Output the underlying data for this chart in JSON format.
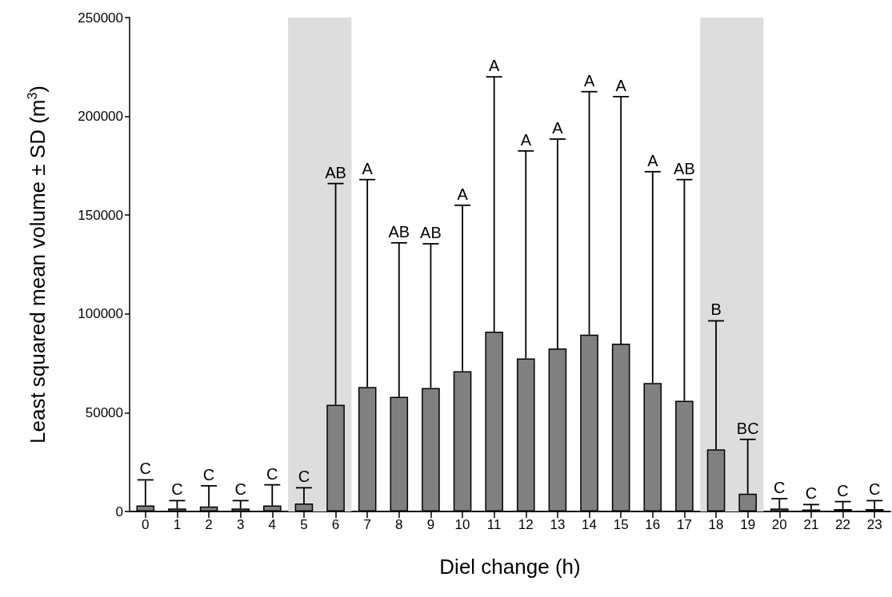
{
  "chart_data": {
    "type": "bar",
    "xlabel": "Diel change (h)",
    "ylabel": "Least squared mean volume ± SD (m$^{3}$)",
    "x": [
      0,
      1,
      2,
      3,
      4,
      5,
      6,
      7,
      8,
      9,
      10,
      11,
      12,
      13,
      14,
      15,
      16,
      17,
      18,
      19,
      20,
      21,
      22,
      23
    ],
    "values": [
      3000,
      1500,
      2500,
      1500,
      3000,
      4000,
      54000,
      63000,
      58000,
      62500,
      71000,
      91000,
      77500,
      82500,
      89500,
      85000,
      65000,
      56000,
      31500,
      9000,
      1500,
      1000,
      1200,
      1200
    ],
    "errors": [
      [
        3000,
        16000
      ],
      [
        1500,
        5500
      ],
      [
        2500,
        13000
      ],
      [
        1500,
        5500
      ],
      [
        3000,
        13500
      ],
      [
        4000,
        12000
      ],
      [
        54000,
        166000
      ],
      [
        63000,
        168000
      ],
      [
        58000,
        136000
      ],
      [
        62500,
        135500
      ],
      [
        71000,
        155000
      ],
      [
        91000,
        220000
      ],
      [
        77500,
        182500
      ],
      [
        82500,
        188500
      ],
      [
        89500,
        212500
      ],
      [
        85000,
        210000
      ],
      [
        65000,
        172000
      ],
      [
        56000,
        168000
      ],
      [
        31500,
        96500
      ],
      [
        9000,
        36500
      ],
      [
        1500,
        6500
      ],
      [
        1000,
        3500
      ],
      [
        1200,
        5000
      ],
      [
        1200,
        5500
      ]
    ],
    "color": "#808080",
    "xlim": [
      -0.5,
      23.5
    ],
    "xticks": [
      0,
      1,
      2,
      3,
      4,
      5,
      6,
      7,
      8,
      9,
      10,
      11,
      12,
      13,
      14,
      15,
      16,
      17,
      18,
      19,
      20,
      21,
      22,
      23
    ],
    "ylim": [
      0,
      250000
    ],
    "yticks": [
      0,
      50000,
      100000,
      150000,
      200000,
      250000
    ],
    "bands": [
      {
        "axis": "x",
        "from": 4.5,
        "to": 6.5,
        "color": "#dddddd"
      },
      {
        "axis": "x",
        "from": 17.5,
        "to": 19.5,
        "color": "#dddddd"
      }
    ],
    "annotations": [
      {
        "text": "C",
        "x": 0,
        "y": 16000
      },
      {
        "text": "C",
        "x": 1,
        "y": 5500
      },
      {
        "text": "C",
        "x": 2,
        "y": 13000
      },
      {
        "text": "C",
        "x": 3,
        "y": 5500
      },
      {
        "text": "C",
        "x": 4,
        "y": 13500
      },
      {
        "text": "C",
        "x": 5,
        "y": 12000
      },
      {
        "text": "AB",
        "x": 6,
        "y": 166000
      },
      {
        "text": "A",
        "x": 7,
        "y": 168000
      },
      {
        "text": "AB",
        "x": 8,
        "y": 136000
      },
      {
        "text": "AB",
        "x": 9,
        "y": 135500
      },
      {
        "text": "A",
        "x": 10,
        "y": 155000
      },
      {
        "text": "A",
        "x": 11,
        "y": 220000
      },
      {
        "text": "A",
        "x": 12,
        "y": 182500
      },
      {
        "text": "A",
        "x": 13,
        "y": 188500
      },
      {
        "text": "A",
        "x": 14,
        "y": 212500
      },
      {
        "text": "A",
        "x": 15,
        "y": 210000
      },
      {
        "text": "A",
        "x": 16,
        "y": 172000
      },
      {
        "text": "AB",
        "x": 17,
        "y": 168000
      },
      {
        "text": "B",
        "x": 18,
        "y": 96500
      },
      {
        "text": "BC",
        "x": 19,
        "y": 36500
      },
      {
        "text": "C",
        "x": 20,
        "y": 6500
      },
      {
        "text": "C",
        "x": 21,
        "y": 3500
      },
      {
        "text": "C",
        "x": 22,
        "y": 5000
      },
      {
        "text": "C",
        "x": 23,
        "y": 5500
      }
    ],
    "grid": false
  }
}
